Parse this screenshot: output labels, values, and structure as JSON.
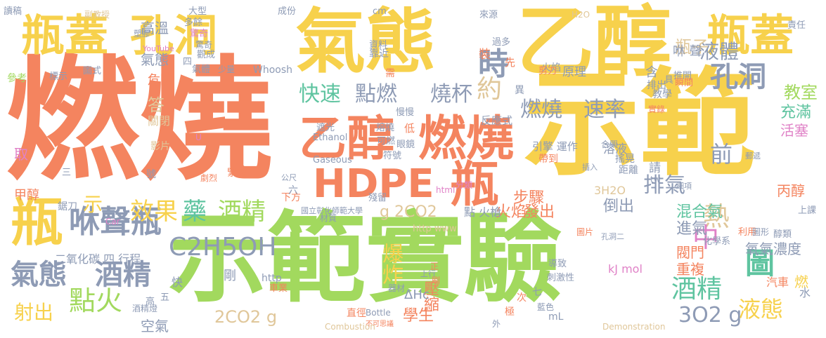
{
  "words": [
    {
      "text": "燃燒",
      "color": "#F4845F"
    },
    {
      "text": "示範",
      "color": "#F7D14C"
    },
    {
      "text": "示範",
      "color": "#A2D95E"
    },
    {
      "text": "實驗",
      "color": "#A2D95E"
    },
    {
      "text": "氣態",
      "color": "#F7D14C"
    },
    {
      "text": "乙醇",
      "color": "#F7D14C"
    },
    {
      "text": "瓶蓋",
      "color": "#F7D14C"
    },
    {
      "text": "孔洞",
      "color": "#F7D14C"
    },
    {
      "text": "瓶蓋",
      "color": "#F7D14C"
    },
    {
      "text": "孔洞",
      "color": "#8E9BB5"
    },
    {
      "text": "乙醇",
      "color": "#F4845F"
    },
    {
      "text": "燃燒",
      "color": "#F4845F"
    },
    {
      "text": "HDPE",
      "color": "#F4845F"
    },
    {
      "text": "瓶",
      "color": "#F4845F"
    },
    {
      "text": "瓶",
      "color": "#F7D14C"
    },
    {
      "text": "咻聲瓶",
      "color": "#8E9BB5"
    },
    {
      "text": "氣態",
      "color": "#8E9BB5"
    },
    {
      "text": "酒精",
      "color": "#8E9BB5"
    },
    {
      "text": "點火",
      "color": "#A2D95E"
    },
    {
      "text": "射出",
      "color": "#F7D14C"
    },
    {
      "text": "C2H5OH",
      "color": "#8E9BB5"
    },
    {
      "text": "效果",
      "color": "#F7D14C"
    },
    {
      "text": "藥",
      "color": "#5FC4A0"
    },
    {
      "text": "酒精",
      "color": "#A2D95E"
    },
    {
      "text": "快速",
      "color": "#5FC4A0"
    },
    {
      "text": "點燃",
      "color": "#8E9BB5"
    },
    {
      "text": "燒杯",
      "color": "#8E9BB5"
    },
    {
      "text": "燃燒",
      "color": "#8E9BB5"
    },
    {
      "text": "速率",
      "color": "#8E9BB5"
    },
    {
      "text": "時",
      "color": "#8E9BB5"
    },
    {
      "text": "約",
      "color": "#E0C79A"
    },
    {
      "text": "液體",
      "color": "#8E9BB5"
    },
    {
      "text": "瓶子",
      "color": "#E0C79A"
    },
    {
      "text": "排氣",
      "color": "#8E9BB5"
    },
    {
      "text": "前",
      "color": "#8E9BB5"
    },
    {
      "text": "熱",
      "color": "#E0C79A"
    },
    {
      "text": "中",
      "color": "#E082C7"
    },
    {
      "text": "圖",
      "color": "#5FC4A0"
    },
    {
      "text": "酒精",
      "color": "#5FC4A0"
    },
    {
      "text": "液態",
      "color": "#F7D14C"
    },
    {
      "text": "3O2 g",
      "color": "#8E9BB5"
    },
    {
      "text": "2CO2 g",
      "color": "#E0C79A"
    },
    {
      "text": "g 2CO2",
      "color": "#E0C79A"
    },
    {
      "text": "爆炸",
      "color": "#F7D14C"
    },
    {
      "text": "壓縮",
      "color": "#F4845F"
    },
    {
      "text": "學生",
      "color": "#F4845F"
    },
    {
      "text": "步驟",
      "color": "#F4845F"
    },
    {
      "text": "火焰",
      "color": "#F4845F"
    },
    {
      "text": "發出",
      "color": "#F4845F"
    },
    {
      "text": "倒出",
      "color": "#8E9BB5"
    },
    {
      "text": "混合氣",
      "color": "#5FC4A0"
    },
    {
      "text": "進氣",
      "color": "#8E9BB5"
    },
    {
      "text": "閥門",
      "color": "#F4845F"
    },
    {
      "text": "重複",
      "color": "#F4845F"
    },
    {
      "text": "氧氣",
      "color": "#8E9BB5"
    },
    {
      "text": "濃度",
      "color": "#8E9BB5"
    },
    {
      "text": "教室",
      "color": "#A2D95E"
    },
    {
      "text": "充滿",
      "color": "#5FC4A0"
    },
    {
      "text": "活塞",
      "color": "#E082C7"
    },
    {
      "text": "丙醇",
      "color": "#F4845F"
    },
    {
      "text": "空氣",
      "color": "#8E9BB5"
    },
    {
      "text": "二氧化碳 四 行程",
      "color": "#8E9BB5"
    },
    {
      "text": "甲醇",
      "color": "#F4845F"
    },
    {
      "text": "危險",
      "color": "#F4845F"
    },
    {
      "text": "答",
      "color": "#E0C79A"
    },
    {
      "text": "關閉",
      "color": "#E0C79A"
    },
    {
      "text": "影片",
      "color": "#E0C79A"
    },
    {
      "text": "高溫",
      "color": "#8E9BB5"
    },
    {
      "text": "氣態",
      "color": "#8E9BB5"
    },
    {
      "text": "參考",
      "color": "#A2D95E"
    },
    {
      "text": "標示",
      "color": "#8E9BB5"
    },
    {
      "text": "圖式",
      "color": "#8E9BB5"
    },
    {
      "text": "大型",
      "color": "#8E9BB5"
    },
    {
      "text": "多餘",
      "color": "#8E9BB5"
    },
    {
      "text": "驚奇",
      "color": "#E082C7"
    },
    {
      "text": "氣體",
      "color": "#8E9BB5"
    },
    {
      "text": "少量",
      "color": "#8E9BB5"
    },
    {
      "text": "Whoosh",
      "color": "#8E9BB5"
    },
    {
      "text": "原理",
      "color": "#8E9BB5"
    },
    {
      "text": "火焰",
      "color": "#8E9BB5"
    },
    {
      "text": "異",
      "color": "#8E9BB5"
    },
    {
      "text": "反應式",
      "color": "#8E9BB5"
    },
    {
      "text": "低",
      "color": "#F4845F"
    },
    {
      "text": "眼鏡",
      "color": "#8E9BB5"
    },
    {
      "text": "Ethanol",
      "color": "#8E9BB5"
    },
    {
      "text": "Gaseous",
      "color": "#8E9BB5"
    },
    {
      "text": "引擎 運作",
      "color": "#8E9BB5"
    },
    {
      "text": "溶液",
      "color": "#8E9BB5"
    },
    {
      "text": "搖晃",
      "color": "#8E9BB5"
    },
    {
      "text": "距離",
      "color": "#8E9BB5"
    },
    {
      "text": "帶到",
      "color": "#F4845F"
    },
    {
      "text": "請",
      "color": "#8E9BB5"
    },
    {
      "text": "tw",
      "color": "#8E9BB5"
    },
    {
      "text": "3H2O",
      "color": "#E0C79A"
    },
    {
      "text": "國立彰化師範大學",
      "color": "#8E9BB5"
    },
    {
      "text": "下方",
      "color": "#F4845F"
    },
    {
      "text": "點 火槍",
      "color": "#8E9BB5"
    },
    {
      "text": "http www",
      "color": "#E0C79A"
    },
    {
      "text": "ΔHc",
      "color": "#8E9BB5"
    },
    {
      "text": "http",
      "color": "#8E9BB5"
    },
    {
      "text": "快",
      "color": "#8E9BB5"
    },
    {
      "text": "剛",
      "color": "#8E9BB5"
    },
    {
      "text": "mL",
      "color": "#8E9BB5"
    },
    {
      "text": "kJ mol",
      "color": "#E082C7"
    },
    {
      "text": "Combustion",
      "color": "#E0C79A"
    },
    {
      "text": "Demonstration",
      "color": "#E0C79A"
    },
    {
      "text": "Bottle",
      "color": "#8E9BB5"
    },
    {
      "text": "示",
      "color": "#F7D14C"
    },
    {
      "text": "咻 聲",
      "color": "#8E9BB5"
    },
    {
      "text": "含",
      "color": "#8E9BB5"
    },
    {
      "text": "排出",
      "color": "#8E9BB5"
    },
    {
      "text": "H2O",
      "color": "#E0C79A"
    },
    {
      "text": "來源",
      "color": "#8E9BB5"
    },
    {
      "text": "靠近",
      "color": "#8E9BB5"
    },
    {
      "text": "剪刀",
      "color": "#F4845F"
    },
    {
      "text": "成份",
      "color": "#8E9BB5"
    },
    {
      "text": "cm",
      "color": "#8E9BB5"
    },
    {
      "text": "讀稿",
      "color": "#8E9BB5"
    },
    {
      "text": "副教授",
      "color": "#E0C79A"
    },
    {
      "text": "責任",
      "color": "#8E9BB5"
    },
    {
      "text": "推開",
      "color": "#8E9BB5"
    },
    {
      "text": "瞬間",
      "color": "#F4845F"
    },
    {
      "text": "燃",
      "color": "#F7D14C"
    },
    {
      "text": "水",
      "color": "#8E9BB5"
    },
    {
      "text": "汽車",
      "color": "#F4845F"
    },
    {
      "text": "醇類",
      "color": "#8E9BB5"
    },
    {
      "text": "化學系",
      "color": "#8E9BB5"
    },
    {
      "text": "上課",
      "color": "#8E9BB5"
    },
    {
      "text": "利用",
      "color": "#F4845F"
    },
    {
      "text": "圖片",
      "color": "#F4845F"
    },
    {
      "text": "導致",
      "color": "#8E9BB5"
    },
    {
      "text": "刺激性",
      "color": "#8E9BB5"
    },
    {
      "text": "藍色",
      "color": "#8E9BB5"
    },
    {
      "text": "極",
      "color": "#F4845F"
    },
    {
      "text": "器材",
      "color": "#8E9BB5"
    },
    {
      "text": "直徑",
      "color": "#F4845F"
    },
    {
      "text": "車業",
      "color": "#F4845F"
    },
    {
      "text": "上行",
      "color": "#8E9BB5"
    },
    {
      "text": "正",
      "color": "#F4845F"
    },
    {
      "text": "刷",
      "color": "#F4845F"
    },
    {
      "text": "不可思議",
      "color": "#F4845F"
    },
    {
      "text": "外",
      "color": "#8E9BB5"
    },
    {
      "text": "次",
      "color": "#F4845F"
    },
    {
      "text": "七",
      "color": "#8E9BB5"
    },
    {
      "text": "材質",
      "color": "#8E9BB5"
    },
    {
      "text": "殘留",
      "color": "#8E9BB5"
    },
    {
      "text": "公尺",
      "color": "#8E9BB5"
    },
    {
      "text": "遮光",
      "color": "#8E9BB5"
    },
    {
      "text": "可燃",
      "color": "#8E9BB5"
    },
    {
      "text": "符號",
      "color": "#8E9BB5"
    },
    {
      "text": "熔燒",
      "color": "#8E9BB5"
    },
    {
      "text": "慢慢",
      "color": "#8E9BB5"
    },
    {
      "text": "資料",
      "color": "#8E9BB5"
    },
    {
      "text": "需",
      "color": "#F4845F"
    },
    {
      "text": "裝",
      "color": "#F4845F"
    },
    {
      "text": "過多",
      "color": "#8E9BB5"
    },
    {
      "text": "先",
      "color": "#F4845F"
    },
    {
      "text": "教學",
      "color": "#8E9BB5"
    },
    {
      "text": "具",
      "color": "#8E9BB5"
    },
    {
      "text": "實錄",
      "color": "#F4845F"
    },
    {
      "text": "合興",
      "color": "#8E9BB5"
    },
    {
      "text": "驚奇",
      "color": "#8E9BB5"
    },
    {
      "text": "塑膠",
      "color": "#8E9BB5"
    },
    {
      "text": "YouTube",
      "color": "#E082C7"
    },
    {
      "text": "觀成",
      "color": "#8E9BB5"
    },
    {
      "text": "四",
      "color": "#8E9BB5"
    },
    {
      "text": "取",
      "color": "#E082C7"
    },
    {
      "text": "U",
      "color": "#E082C7"
    },
    {
      "text": "劇烈",
      "color": "#F4845F"
    },
    {
      "text": "Car",
      "color": "#E082C7"
    },
    {
      "text": "鋸刀",
      "color": "#8E9BB5"
    },
    {
      "text": "分類",
      "color": "#E082C7"
    },
    {
      "text": "html",
      "color": "#E082C7"
    },
    {
      "text": "緊破",
      "color": "#F4845F"
    },
    {
      "text": "六",
      "color": "#8E9BB5"
    },
    {
      "text": "號",
      "color": "#8E9BB5"
    },
    {
      "text": "高",
      "color": "#8E9BB5"
    },
    {
      "text": "五",
      "color": "#8E9BB5"
    },
    {
      "text": "酒精燈",
      "color": "#8E9BB5"
    },
    {
      "text": "三",
      "color": "#8E9BB5"
    },
    {
      "text": "圖形",
      "color": "#8E9BB5"
    },
    {
      "text": "孔洞二",
      "color": "#8E9BB5"
    },
    {
      "text": "郵遞",
      "color": "#8E9BB5"
    },
    {
      "text": "細項",
      "color": "#8E9BB5"
    },
    {
      "text": "插入",
      "color": "#8E9BB5"
    }
  ]
}
